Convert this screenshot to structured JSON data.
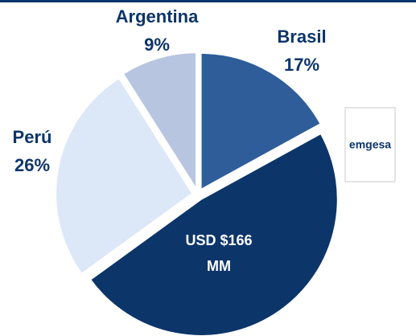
{
  "chart_data": {
    "type": "pie",
    "categories": [
      "Brasil",
      null,
      "Perú",
      "Argentina"
    ],
    "values": [
      17,
      48,
      26,
      9
    ],
    "value_labels": [
      "17%",
      null,
      "26%",
      "9%"
    ],
    "colors": [
      "#2e5d9a",
      "#0c356a",
      "#dce7f7",
      "#b7c5e0"
    ],
    "annotation": [
      "USD $166",
      "MM"
    ],
    "logo": "emgesa"
  }
}
